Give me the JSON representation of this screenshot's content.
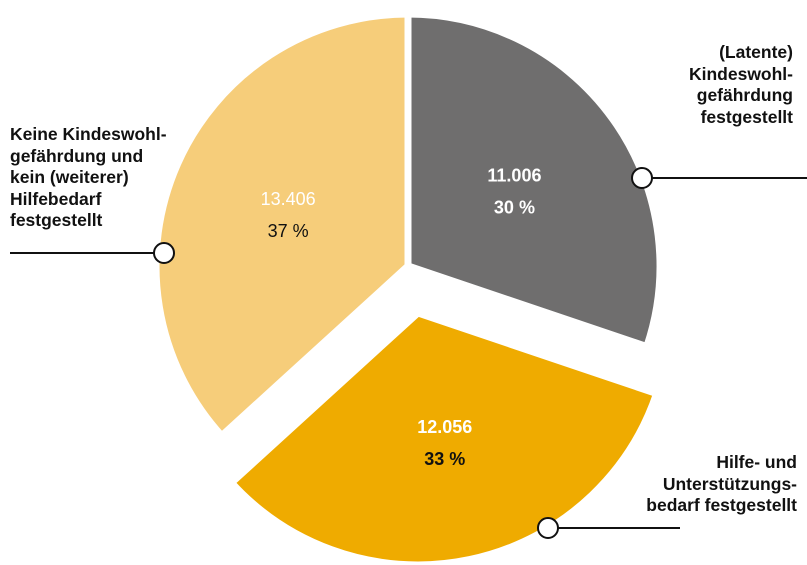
{
  "chart_data": {
    "type": "pie",
    "slices": [
      {
        "value": 11006,
        "value_label": "11.006",
        "percent_label": "30 %",
        "label_lines": [
          "(Latente)",
          "Kindeswohl-",
          "gefährdung",
          "festgestellt"
        ],
        "color": "#6f6e6e",
        "value_color": "#ffffff",
        "percent_color": "#ffffff",
        "exploded": false
      },
      {
        "value": 12056,
        "value_label": "12.056",
        "percent_label": "33 %",
        "label_lines": [
          "Hilfe- und",
          "Unterstützungs-",
          "bedarf festgestellt"
        ],
        "color": "#efab00",
        "value_color": "#ffffff",
        "percent_color": "#111111",
        "exploded": true
      },
      {
        "value": 13406,
        "value_label": "13.406",
        "percent_label": "37 %",
        "label_lines": [
          "Keine Kindeswohl-",
          "gefährdung und",
          "kein (weiterer)",
          "Hilfebedarf",
          "festgestellt"
        ],
        "color": "#f6cd7a",
        "value_color": "#ffffff",
        "percent_color": "#111111",
        "exploded": false
      }
    ],
    "start_angle_deg": 0,
    "direction": "clockwise"
  }
}
